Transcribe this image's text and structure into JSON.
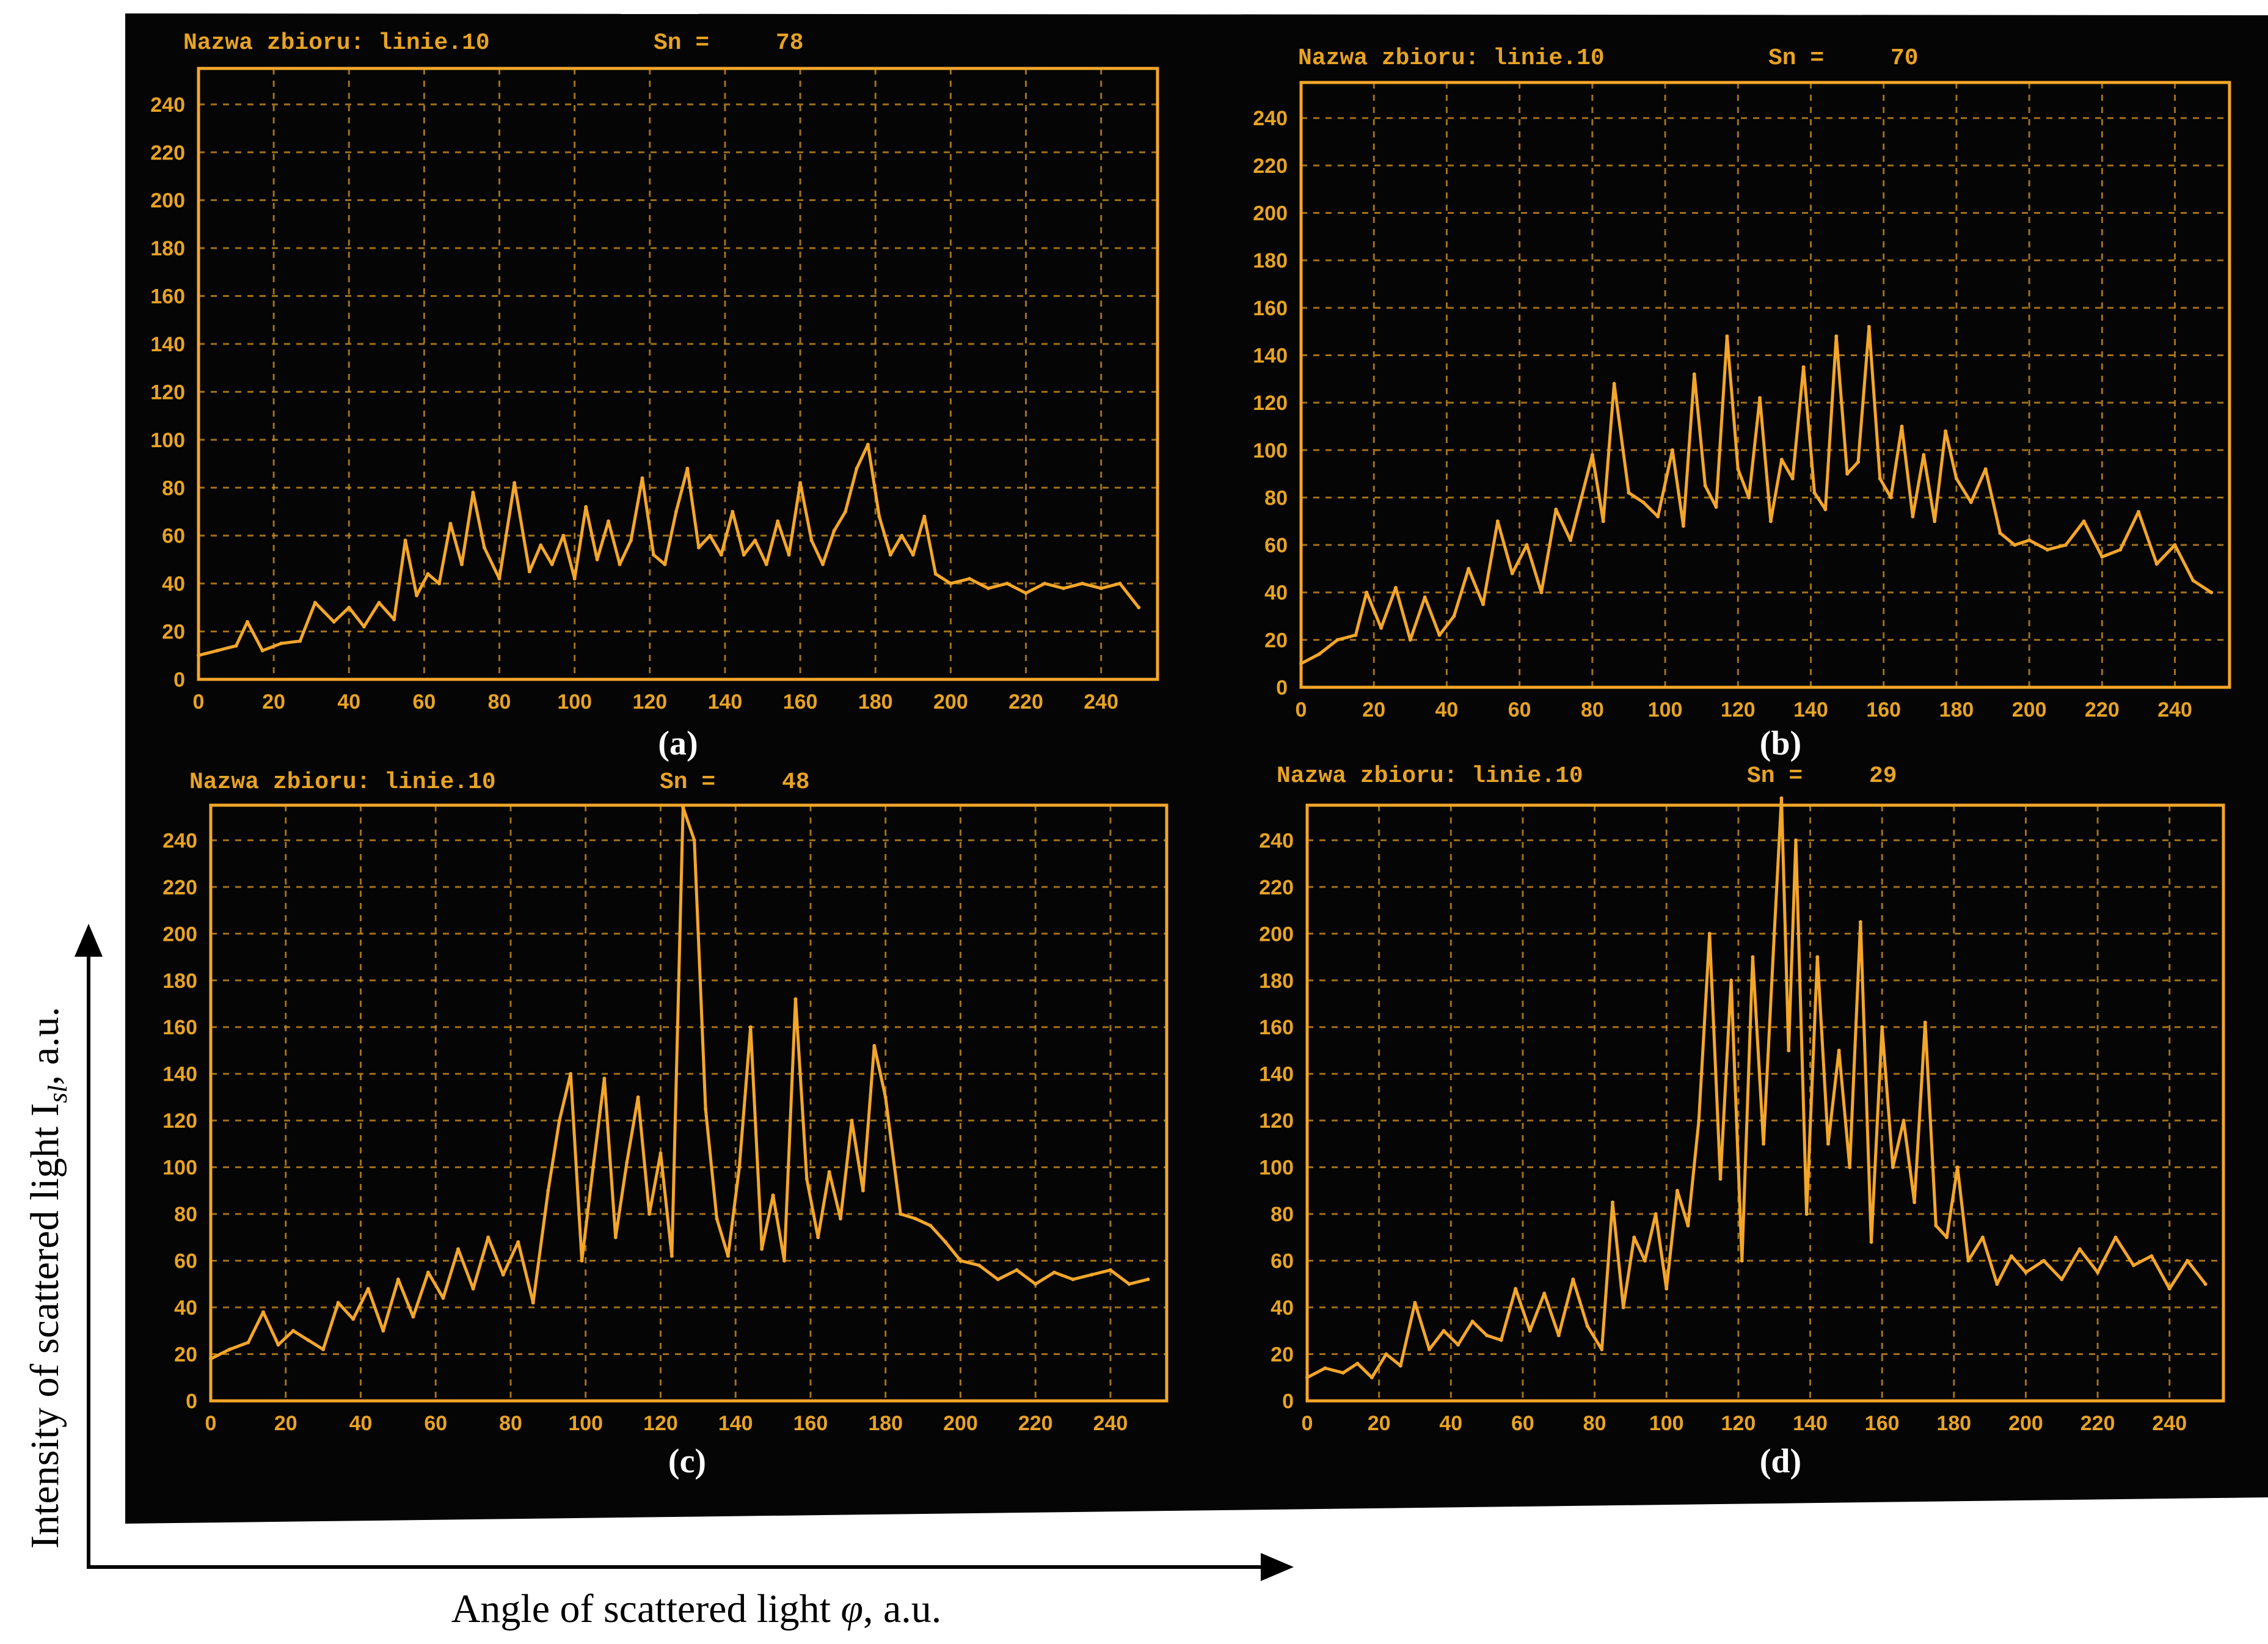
{
  "figure": {
    "y_axis_label": "Intensity of scattered light I",
    "y_axis_label_sub": "sl",
    "y_axis_label_unit": ", a.u.",
    "x_axis_label_main": "Angle of scattered light ",
    "x_axis_label_symbol": "φ",
    "x_axis_label_unit": ", a.u.",
    "colors": {
      "background": "#ffffff",
      "screen": "#050505",
      "trace": "#f4a62a",
      "grid": "#c98c1e",
      "text": "#e7a324"
    }
  },
  "chart_data": [
    {
      "type": "line",
      "panel_label": "(a)",
      "header_label": "Nazwa zbioru: linie.10",
      "sn_label": "Sn =",
      "sn_value": "78",
      "x_ticks": [
        "0",
        "20",
        "40",
        "60",
        "80",
        "100",
        "120",
        "140",
        "160",
        "180",
        "200",
        "220",
        "240"
      ],
      "y_ticks": [
        "0",
        "20",
        "40",
        "60",
        "80",
        "100",
        "120",
        "140",
        "160",
        "180",
        "200",
        "220",
        "240"
      ],
      "xlim": [
        0,
        255
      ],
      "ylim": [
        0,
        255
      ],
      "x": [
        0,
        5,
        10,
        13,
        17,
        22,
        27,
        31,
        36,
        40,
        44,
        48,
        52,
        55,
        58,
        61,
        64,
        67,
        70,
        73,
        76,
        80,
        84,
        88,
        91,
        94,
        97,
        100,
        103,
        106,
        109,
        112,
        115,
        118,
        121,
        124,
        127,
        130,
        133,
        136,
        139,
        142,
        145,
        148,
        151,
        154,
        157,
        160,
        163,
        166,
        169,
        172,
        175,
        178,
        181,
        184,
        187,
        190,
        193,
        196,
        200,
        205,
        210,
        215,
        220,
        225,
        230,
        235,
        240,
        245,
        250
      ],
      "y": [
        10,
        12,
        14,
        24,
        12,
        15,
        16,
        32,
        24,
        30,
        22,
        32,
        25,
        58,
        35,
        44,
        40,
        65,
        48,
        78,
        55,
        42,
        82,
        45,
        56,
        48,
        60,
        42,
        72,
        50,
        66,
        48,
        58,
        84,
        52,
        48,
        70,
        88,
        55,
        60,
        52,
        70,
        52,
        58,
        48,
        66,
        52,
        82,
        58,
        48,
        62,
        70,
        88,
        98,
        68,
        52,
        60,
        52,
        68,
        44,
        40,
        42,
        38,
        40,
        36,
        40,
        38,
        40,
        38,
        40,
        30
      ]
    },
    {
      "type": "line",
      "panel_label": "(b)",
      "header_label": "Nazwa zbioru: linie.10",
      "sn_label": "Sn =",
      "sn_value": "70",
      "x_ticks": [
        "0",
        "20",
        "40",
        "60",
        "80",
        "100",
        "120",
        "140",
        "160",
        "180",
        "200",
        "220",
        "240"
      ],
      "y_ticks": [
        "0",
        "20",
        "40",
        "60",
        "80",
        "100",
        "120",
        "140",
        "160",
        "180",
        "200",
        "220",
        "240"
      ],
      "xlim": [
        0,
        255
      ],
      "ylim": [
        0,
        255
      ],
      "x": [
        0,
        5,
        10,
        15,
        18,
        22,
        26,
        30,
        34,
        38,
        42,
        46,
        50,
        54,
        58,
        62,
        66,
        70,
        74,
        77,
        80,
        83,
        86,
        90,
        94,
        98,
        102,
        105,
        108,
        111,
        114,
        117,
        120,
        123,
        126,
        129,
        132,
        135,
        138,
        141,
        144,
        147,
        150,
        153,
        156,
        159,
        162,
        165,
        168,
        171,
        174,
        177,
        180,
        184,
        188,
        192,
        196,
        200,
        205,
        210,
        215,
        220,
        225,
        230,
        235,
        240,
        245,
        250
      ],
      "y": [
        10,
        14,
        20,
        22,
        40,
        25,
        42,
        20,
        38,
        22,
        30,
        50,
        35,
        70,
        48,
        60,
        40,
        75,
        62,
        80,
        98,
        70,
        128,
        82,
        78,
        72,
        100,
        68,
        132,
        85,
        76,
        148,
        92,
        80,
        122,
        70,
        96,
        88,
        135,
        82,
        75,
        148,
        90,
        95,
        152,
        88,
        80,
        110,
        72,
        98,
        70,
        108,
        88,
        78,
        92,
        65,
        60,
        62,
        58,
        60,
        70,
        55,
        58,
        74,
        52,
        60,
        45,
        40
      ]
    },
    {
      "type": "line",
      "panel_label": "(c)",
      "header_label": "Nazwa zbioru: linie.10",
      "sn_label": "Sn =",
      "sn_value": "48",
      "x_ticks": [
        "0",
        "20",
        "40",
        "60",
        "80",
        "100",
        "120",
        "140",
        "160",
        "180",
        "200",
        "220",
        "240"
      ],
      "y_ticks": [
        "0",
        "20",
        "40",
        "60",
        "80",
        "100",
        "120",
        "140",
        "160",
        "180",
        "200",
        "220",
        "240"
      ],
      "xlim": [
        0,
        255
      ],
      "ylim": [
        0,
        255
      ],
      "x": [
        0,
        5,
        10,
        14,
        18,
        22,
        26,
        30,
        34,
        38,
        42,
        46,
        50,
        54,
        58,
        62,
        66,
        70,
        74,
        78,
        82,
        86,
        90,
        93,
        96,
        99,
        102,
        105,
        108,
        111,
        114,
        117,
        120,
        123,
        126,
        129,
        132,
        135,
        138,
        141,
        144,
        147,
        150,
        153,
        156,
        159,
        162,
        165,
        168,
        171,
        174,
        177,
        180,
        184,
        188,
        192,
        196,
        200,
        205,
        210,
        215,
        220,
        225,
        230,
        235,
        240,
        245,
        250
      ],
      "y": [
        18,
        22,
        25,
        38,
        24,
        30,
        26,
        22,
        42,
        35,
        48,
        30,
        52,
        36,
        55,
        44,
        65,
        48,
        70,
        54,
        68,
        42,
        90,
        120,
        140,
        60,
        100,
        138,
        70,
        102,
        130,
        80,
        106,
        62,
        254,
        240,
        125,
        78,
        62,
        100,
        160,
        65,
        88,
        60,
        172,
        95,
        70,
        98,
        78,
        120,
        90,
        152,
        130,
        80,
        78,
        75,
        68,
        60,
        58,
        52,
        56,
        50,
        55,
        52,
        54,
        56,
        50,
        52
      ]
    },
    {
      "type": "line",
      "panel_label": "(d)",
      "header_label": "Nazwa zbioru: linie.10",
      "sn_label": "Sn =",
      "sn_value": "29",
      "x_ticks": [
        "0",
        "20",
        "40",
        "60",
        "80",
        "100",
        "120",
        "140",
        "160",
        "180",
        "200",
        "220",
        "240"
      ],
      "y_ticks": [
        "0",
        "20",
        "40",
        "60",
        "80",
        "100",
        "120",
        "140",
        "160",
        "180",
        "200",
        "220",
        "240"
      ],
      "xlim": [
        0,
        255
      ],
      "ylim": [
        0,
        255
      ],
      "x": [
        0,
        5,
        10,
        14,
        18,
        22,
        26,
        30,
        34,
        38,
        42,
        46,
        50,
        54,
        58,
        62,
        66,
        70,
        74,
        78,
        82,
        85,
        88,
        91,
        94,
        97,
        100,
        103,
        106,
        109,
        112,
        115,
        118,
        121,
        124,
        127,
        130,
        132,
        134,
        136,
        139,
        142,
        145,
        148,
        151,
        154,
        157,
        160,
        163,
        166,
        169,
        172,
        175,
        178,
        181,
        184,
        188,
        192,
        196,
        200,
        205,
        210,
        215,
        220,
        225,
        230,
        235,
        240,
        245,
        250
      ],
      "y": [
        10,
        14,
        12,
        16,
        10,
        20,
        15,
        42,
        22,
        30,
        24,
        34,
        28,
        26,
        48,
        30,
        46,
        28,
        52,
        32,
        22,
        85,
        40,
        70,
        60,
        80,
        48,
        90,
        75,
        120,
        200,
        95,
        180,
        60,
        190,
        110,
        200,
        258,
        150,
        240,
        80,
        190,
        110,
        150,
        100,
        205,
        68,
        160,
        100,
        120,
        85,
        162,
        75,
        70,
        100,
        60,
        70,
        50,
        62,
        55,
        60,
        52,
        65,
        55,
        70,
        58,
        62,
        48,
        60,
        50
      ]
    }
  ]
}
